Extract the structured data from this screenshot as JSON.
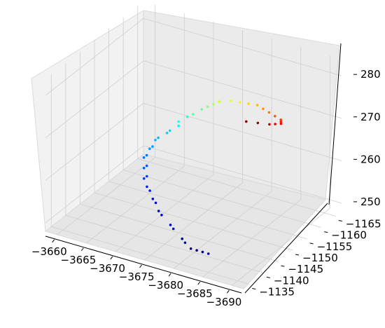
{
  "chart_data": {
    "type": "scatter",
    "projection": "3d",
    "grid": true,
    "colormap": "jet, mapped to z",
    "x_ticks": [
      "−3660",
      "−3665",
      "−3670",
      "−3675",
      "−3680",
      "−3685",
      "−3690"
    ],
    "y_ticks": [
      "−1135",
      "−1140",
      "−1145",
      "−1150",
      "−1155",
      "−1160",
      "−1165"
    ],
    "z_ticks": [
      "250",
      "260",
      "270",
      "280"
    ],
    "xlim": [
      -3658,
      -3692
    ],
    "ylim": [
      -1133,
      -1167
    ],
    "zlim": [
      248,
      284
    ],
    "points": [
      {
        "x": -3679,
        "y": -1141,
        "z": 248
      },
      {
        "x": -3680,
        "y": -1141,
        "z": 248
      },
      {
        "x": -3681,
        "y": -1141,
        "z": 248
      },
      {
        "x": -3682,
        "y": -1141,
        "z": 248
      },
      {
        "x": -3678,
        "y": -1141,
        "z": 249
      },
      {
        "x": -3677,
        "y": -1142,
        "z": 249
      },
      {
        "x": -3675,
        "y": -1143,
        "z": 250
      },
      {
        "x": -3674,
        "y": -1144,
        "z": 250
      },
      {
        "x": -3672,
        "y": -1145,
        "z": 251
      },
      {
        "x": -3671,
        "y": -1146,
        "z": 251
      },
      {
        "x": -3670,
        "y": -1147,
        "z": 252
      },
      {
        "x": -3669,
        "y": -1148,
        "z": 252
      },
      {
        "x": -3668,
        "y": -1149,
        "z": 253
      },
      {
        "x": -3667,
        "y": -1150,
        "z": 253
      },
      {
        "x": -3666,
        "y": -1151,
        "z": 254
      },
      {
        "x": -3666,
        "y": -1152,
        "z": 254
      },
      {
        "x": -3665,
        "y": -1153,
        "z": 255
      },
      {
        "x": -3665,
        "y": -1154,
        "z": 255
      },
      {
        "x": -3664,
        "y": -1155,
        "z": 256
      },
      {
        "x": -3664,
        "y": -1156,
        "z": 256
      },
      {
        "x": -3664,
        "y": -1157,
        "z": 257
      },
      {
        "x": -3664,
        "y": -1158,
        "z": 257
      },
      {
        "x": -3664,
        "y": -1159,
        "z": 258
      },
      {
        "x": -3664,
        "y": -1160,
        "z": 258
      },
      {
        "x": -3665,
        "y": -1161,
        "z": 259
      },
      {
        "x": -3665,
        "y": -1162,
        "z": 259
      },
      {
        "x": -3666,
        "y": -1163,
        "z": 260
      },
      {
        "x": -3666,
        "y": -1163,
        "z": 261
      },
      {
        "x": -3667,
        "y": -1164,
        "z": 262
      },
      {
        "x": -3668,
        "y": -1164,
        "z": 263
      },
      {
        "x": -3669,
        "y": -1165,
        "z": 264
      },
      {
        "x": -3670,
        "y": -1165,
        "z": 265
      },
      {
        "x": -3671,
        "y": -1165,
        "z": 266
      },
      {
        "x": -3672,
        "y": -1165,
        "z": 267
      },
      {
        "x": -3674,
        "y": -1165,
        "z": 268
      },
      {
        "x": -3676,
        "y": -1164,
        "z": 269
      },
      {
        "x": -3678,
        "y": -1163,
        "z": 270
      },
      {
        "x": -3680,
        "y": -1162,
        "z": 271
      },
      {
        "x": -3682,
        "y": -1160,
        "z": 272
      },
      {
        "x": -3684,
        "y": -1158,
        "z": 273
      },
      {
        "x": -3686,
        "y": -1156,
        "z": 274
      },
      {
        "x": -3688,
        "y": -1154,
        "z": 275
      },
      {
        "x": -3689,
        "y": -1152,
        "z": 276
      },
      {
        "x": -3690,
        "y": -1150,
        "z": 277
      },
      {
        "x": -3690,
        "y": -1148,
        "z": 278
      },
      {
        "x": -3690,
        "y": -1146,
        "z": 279
      },
      {
        "x": -3689,
        "y": -1144,
        "z": 280
      },
      {
        "x": -3688,
        "y": -1142,
        "z": 281
      }
    ]
  }
}
